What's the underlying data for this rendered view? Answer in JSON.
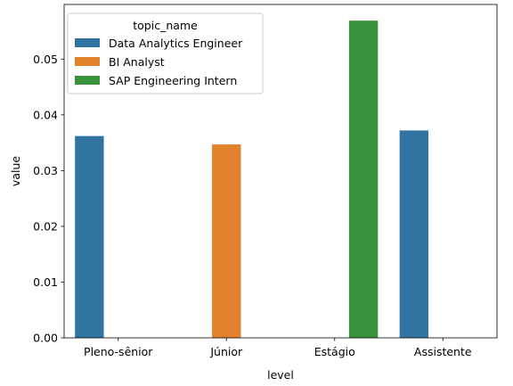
{
  "chart_data": {
    "type": "bar",
    "title": "",
    "xlabel": "level",
    "ylabel": "value",
    "categories": [
      "Pleno-sênior",
      "Júnior",
      "Estágio",
      "Assistente"
    ],
    "ylim": [
      0,
      0.0598
    ],
    "yticks": [
      0.0,
      0.01,
      0.02,
      0.03,
      0.04,
      0.05
    ],
    "ytick_labels": [
      "0.00",
      "0.01",
      "0.02",
      "0.03",
      "0.04",
      "0.05"
    ],
    "legend": {
      "title": "topic_name",
      "placement": "top-left"
    },
    "series": [
      {
        "name": "Data Analytics Engineer",
        "color": "#3274a1",
        "values": [
          0.0362,
          null,
          null,
          0.0372
        ]
      },
      {
        "name": "BI Analyst",
        "color": "#e1812c",
        "values": [
          null,
          0.0347,
          null,
          null
        ]
      },
      {
        "name": "SAP Engineering Intern",
        "color": "#3a923a",
        "values": [
          null,
          null,
          0.0569,
          null
        ]
      }
    ]
  }
}
